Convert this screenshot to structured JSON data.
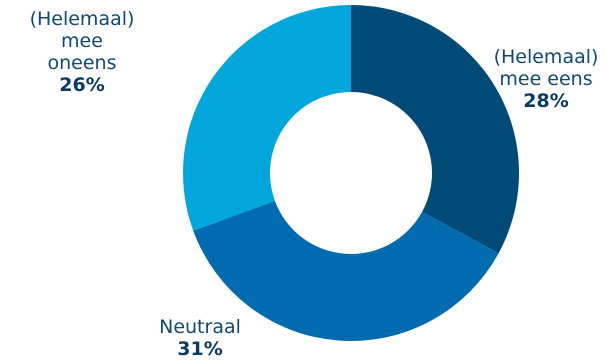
{
  "chart_data": {
    "type": "pie",
    "variant": "donut",
    "title": "",
    "start_angle_deg": 0,
    "direction": "clockwise",
    "slices": [
      {
        "label": "(Helemaal)\nmee eens",
        "value": 28,
        "value_label": "28%",
        "color": "#004a77"
      },
      {
        "label": "Neutraal",
        "value": 31,
        "value_label": "31%",
        "color": "#006baf"
      },
      {
        "label": "(Helemaal)\nmee\noneens",
        "value": 26,
        "value_label": "26%",
        "color": "#00a6dc"
      }
    ]
  }
}
